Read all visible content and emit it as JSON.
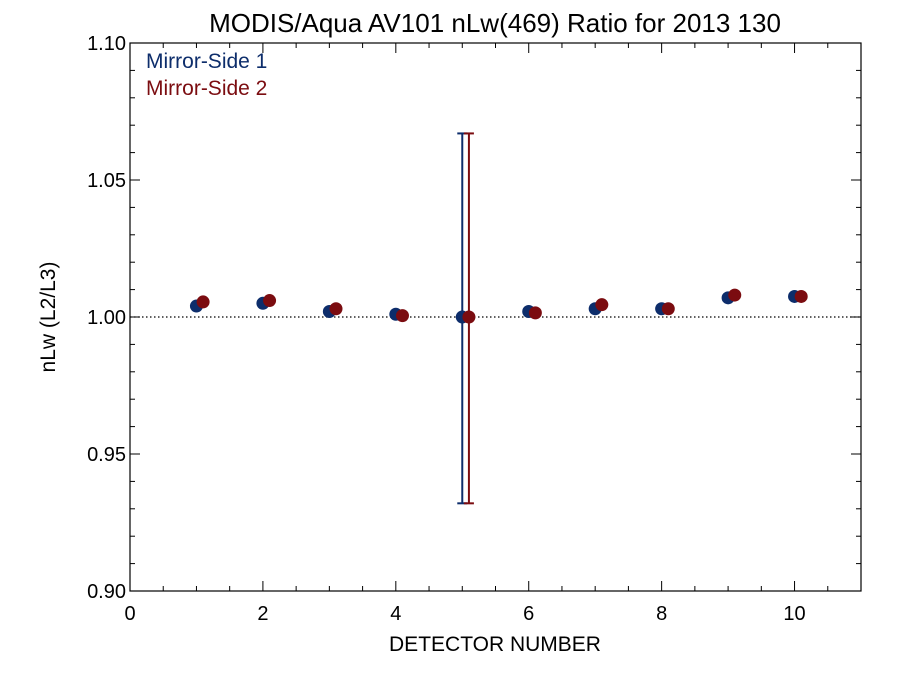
{
  "chart_data": {
    "type": "scatter",
    "title": "MODIS/Aqua AV101 nLw(469) Ratio for 2013 130",
    "xlabel": "DETECTOR NUMBER",
    "ylabel": "nLw (L2/L3)",
    "xlim": [
      0,
      11
    ],
    "ylim": [
      0.9,
      1.1
    ],
    "x_ticks": [
      0,
      2,
      4,
      6,
      8,
      10
    ],
    "x_tick_labels": [
      "0",
      "2",
      "4",
      "6",
      "8",
      "10"
    ],
    "y_ticks": [
      0.9,
      0.95,
      1.0,
      1.05,
      1.1
    ],
    "y_tick_labels": [
      "0.90",
      "0.95",
      "1.00",
      "1.05",
      "1.10"
    ],
    "reference_line": 1.0,
    "legend_position": "top-left",
    "series": [
      {
        "name": "Mirror-Side 1",
        "color": "#0d2d6b",
        "x_offset": 0,
        "x": [
          1,
          2,
          3,
          4,
          5,
          6,
          7,
          8,
          9,
          10
        ],
        "y": [
          1.004,
          1.005,
          1.002,
          1.001,
          1.0,
          1.002,
          1.003,
          1.003,
          1.007,
          1.0075
        ],
        "error_bars": [
          {
            "x": 5,
            "low": 0.932,
            "high": 1.067
          }
        ]
      },
      {
        "name": "Mirror-Side 2",
        "color": "#7b0c10",
        "x_offset": 0.1,
        "x": [
          1,
          2,
          3,
          4,
          5,
          6,
          7,
          8,
          9,
          10
        ],
        "y": [
          1.0055,
          1.006,
          1.003,
          1.0005,
          1.0,
          1.0015,
          1.0045,
          1.003,
          1.008,
          1.0075
        ],
        "error_bars": [
          {
            "x": 5,
            "low": 0.932,
            "high": 1.067
          }
        ]
      }
    ]
  }
}
